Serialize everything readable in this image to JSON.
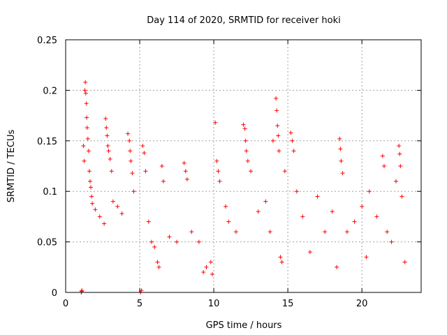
{
  "chart_data": {
    "type": "scatter",
    "title": "Day 114 of 2020, SRMTID for receiver hoki",
    "xlabel": "GPS time / hours",
    "ylabel": "SRMTID / TECUs",
    "xlim": [
      0,
      24
    ],
    "ylim": [
      0,
      0.25
    ],
    "x_ticks": [
      0,
      5,
      10,
      15,
      20
    ],
    "x_tick_labels": [
      "0",
      "5",
      "10",
      "15",
      "20"
    ],
    "y_ticks": [
      0,
      0.05,
      0.1,
      0.15,
      0.2,
      0.25
    ],
    "y_tick_labels": [
      "0",
      "0.05",
      "0.1",
      "0.15",
      "0.2",
      "0.25"
    ],
    "grid": true,
    "marker": "+",
    "marker_color": "#ff0000",
    "series": [
      {
        "name": "SRMTID",
        "points": [
          [
            1.05,
            0.0
          ],
          [
            1.08,
            0.001
          ],
          [
            1.1,
            0.002
          ],
          [
            5.05,
            0.0
          ],
          [
            5.12,
            0.002
          ],
          [
            1.2,
            0.145
          ],
          [
            1.25,
            0.13
          ],
          [
            1.3,
            0.2
          ],
          [
            1.33,
            0.208
          ],
          [
            1.36,
            0.197
          ],
          [
            1.4,
            0.187
          ],
          [
            1.42,
            0.173
          ],
          [
            1.45,
            0.163
          ],
          [
            1.5,
            0.152
          ],
          [
            1.55,
            0.14
          ],
          [
            1.6,
            0.12
          ],
          [
            1.65,
            0.11
          ],
          [
            1.7,
            0.104
          ],
          [
            1.75,
            0.095
          ],
          [
            1.8,
            0.088
          ],
          [
            2.0,
            0.082
          ],
          [
            2.3,
            0.075
          ],
          [
            2.6,
            0.068
          ],
          [
            2.7,
            0.172
          ],
          [
            2.75,
            0.163
          ],
          [
            2.8,
            0.155
          ],
          [
            2.85,
            0.145
          ],
          [
            2.9,
            0.14
          ],
          [
            3.0,
            0.132
          ],
          [
            3.1,
            0.12
          ],
          [
            3.2,
            0.09
          ],
          [
            3.5,
            0.085
          ],
          [
            3.8,
            0.078
          ],
          [
            4.2,
            0.157
          ],
          [
            4.3,
            0.15
          ],
          [
            4.35,
            0.14
          ],
          [
            4.4,
            0.13
          ],
          [
            4.5,
            0.118
          ],
          [
            4.6,
            0.1
          ],
          [
            5.2,
            0.145
          ],
          [
            5.3,
            0.138
          ],
          [
            5.4,
            0.12
          ],
          [
            5.6,
            0.07
          ],
          [
            5.8,
            0.05
          ],
          [
            6.0,
            0.045
          ],
          [
            6.2,
            0.03
          ],
          [
            6.3,
            0.025
          ],
          [
            6.5,
            0.125
          ],
          [
            6.6,
            0.11
          ],
          [
            7.0,
            0.055
          ],
          [
            7.5,
            0.05
          ],
          [
            8.0,
            0.128
          ],
          [
            8.1,
            0.12
          ],
          [
            8.2,
            0.112
          ],
          [
            8.5,
            0.06
          ],
          [
            9.0,
            0.05
          ],
          [
            9.3,
            0.02
          ],
          [
            9.5,
            0.025
          ],
          [
            9.8,
            0.03
          ],
          [
            9.9,
            0.018
          ],
          [
            10.1,
            0.168
          ],
          [
            10.2,
            0.13
          ],
          [
            10.3,
            0.12
          ],
          [
            10.4,
            0.11
          ],
          [
            10.8,
            0.085
          ],
          [
            11.0,
            0.07
          ],
          [
            11.5,
            0.06
          ],
          [
            12.0,
            0.166
          ],
          [
            12.1,
            0.162
          ],
          [
            12.15,
            0.15
          ],
          [
            12.2,
            0.14
          ],
          [
            12.3,
            0.13
          ],
          [
            12.5,
            0.12
          ],
          [
            13.0,
            0.08
          ],
          [
            13.5,
            0.09
          ],
          [
            13.8,
            0.06
          ],
          [
            14.0,
            0.15
          ],
          [
            14.2,
            0.192
          ],
          [
            14.25,
            0.18
          ],
          [
            14.3,
            0.165
          ],
          [
            14.35,
            0.155
          ],
          [
            14.4,
            0.14
          ],
          [
            14.5,
            0.035
          ],
          [
            14.6,
            0.03
          ],
          [
            14.8,
            0.12
          ],
          [
            15.2,
            0.158
          ],
          [
            15.3,
            0.15
          ],
          [
            15.4,
            0.14
          ],
          [
            15.6,
            0.1
          ],
          [
            16.0,
            0.075
          ],
          [
            16.5,
            0.04
          ],
          [
            17.0,
            0.095
          ],
          [
            17.5,
            0.06
          ],
          [
            18.0,
            0.08
          ],
          [
            18.3,
            0.025
          ],
          [
            18.5,
            0.152
          ],
          [
            18.55,
            0.142
          ],
          [
            18.6,
            0.13
          ],
          [
            18.7,
            0.118
          ],
          [
            19.0,
            0.06
          ],
          [
            19.5,
            0.07
          ],
          [
            20.0,
            0.085
          ],
          [
            20.3,
            0.035
          ],
          [
            20.5,
            0.1
          ],
          [
            21.0,
            0.075
          ],
          [
            21.4,
            0.135
          ],
          [
            21.5,
            0.125
          ],
          [
            21.7,
            0.06
          ],
          [
            22.0,
            0.05
          ],
          [
            22.3,
            0.11
          ],
          [
            22.5,
            0.145
          ],
          [
            22.55,
            0.137
          ],
          [
            22.6,
            0.125
          ],
          [
            22.7,
            0.095
          ],
          [
            22.9,
            0.03
          ]
        ]
      }
    ]
  }
}
